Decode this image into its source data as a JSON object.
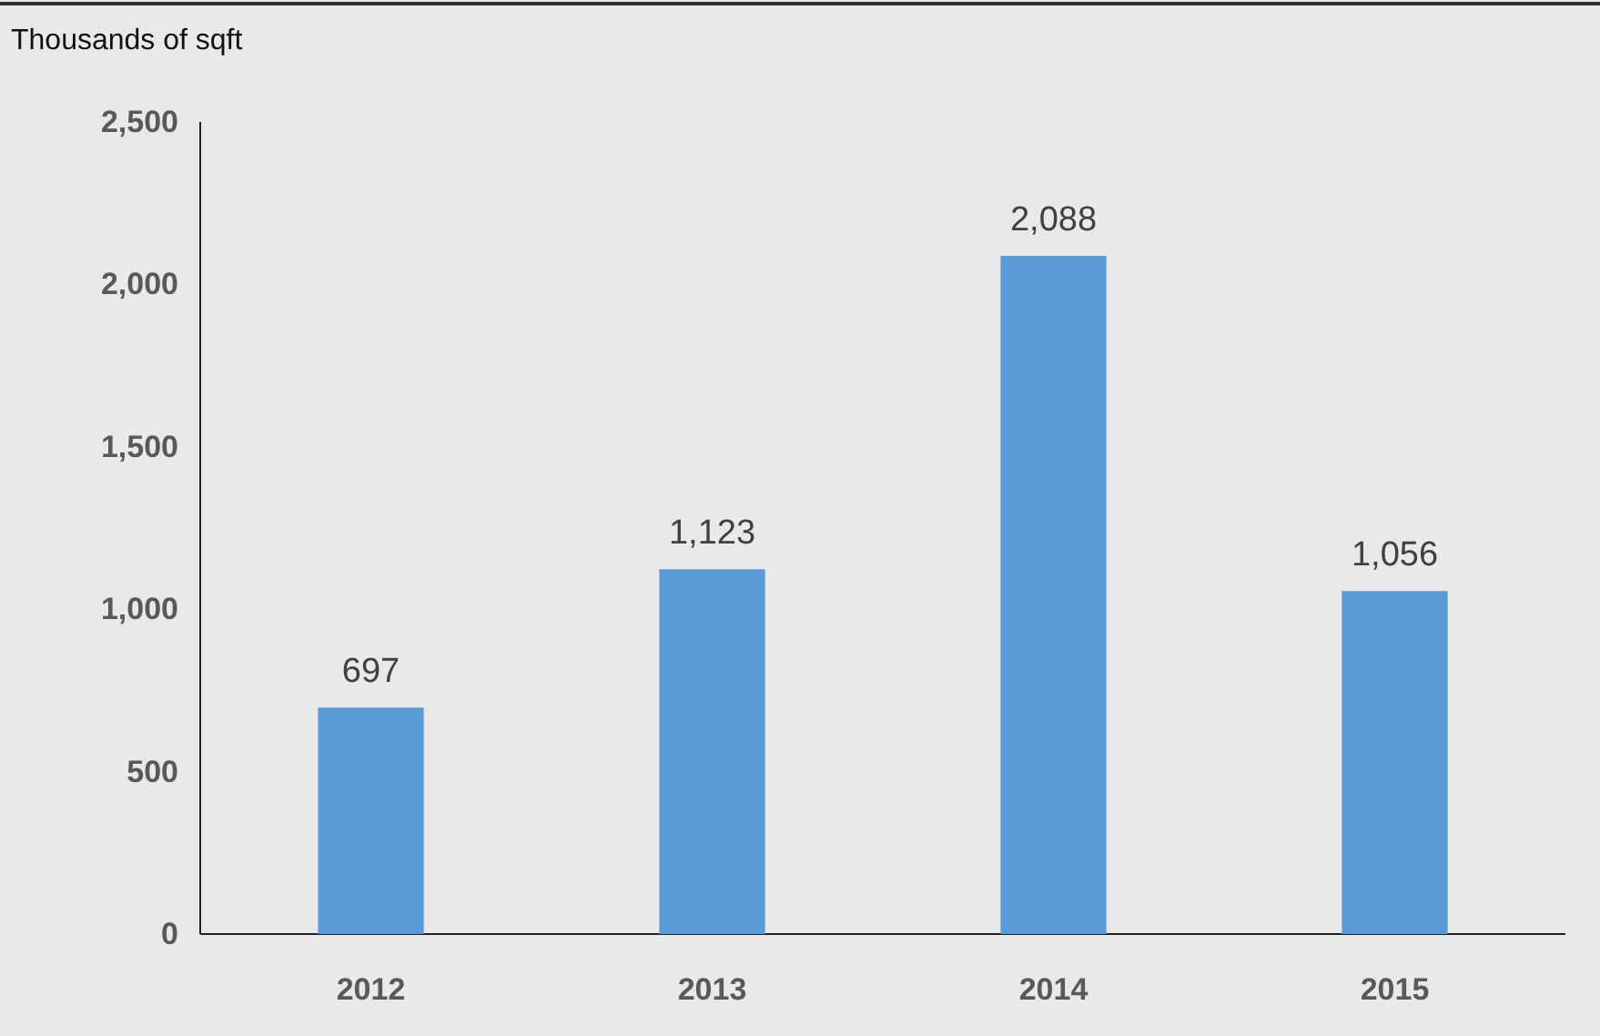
{
  "chart_data": {
    "type": "bar",
    "ylabel": "Thousands of sqft",
    "categories": [
      "2012",
      "2013",
      "2014",
      "2015"
    ],
    "values": [
      697,
      1123,
      2088,
      1056
    ],
    "color": "#5b9bd5",
    "ylim": [
      0,
      2500
    ],
    "yticks": [
      0,
      {
        "value": 500,
        "label": "500"
      },
      {
        "value": 1000,
        "label": "1,000"
      },
      {
        "value": 1500,
        "label": "1,500"
      },
      {
        "value": 2000,
        "label": "2,000"
      },
      {
        "value": 2500,
        "label": "2,500"
      }
    ],
    "value_labels": [
      "697",
      "1,123",
      "2,088",
      "1,056"
    ],
    "grid": false
  }
}
